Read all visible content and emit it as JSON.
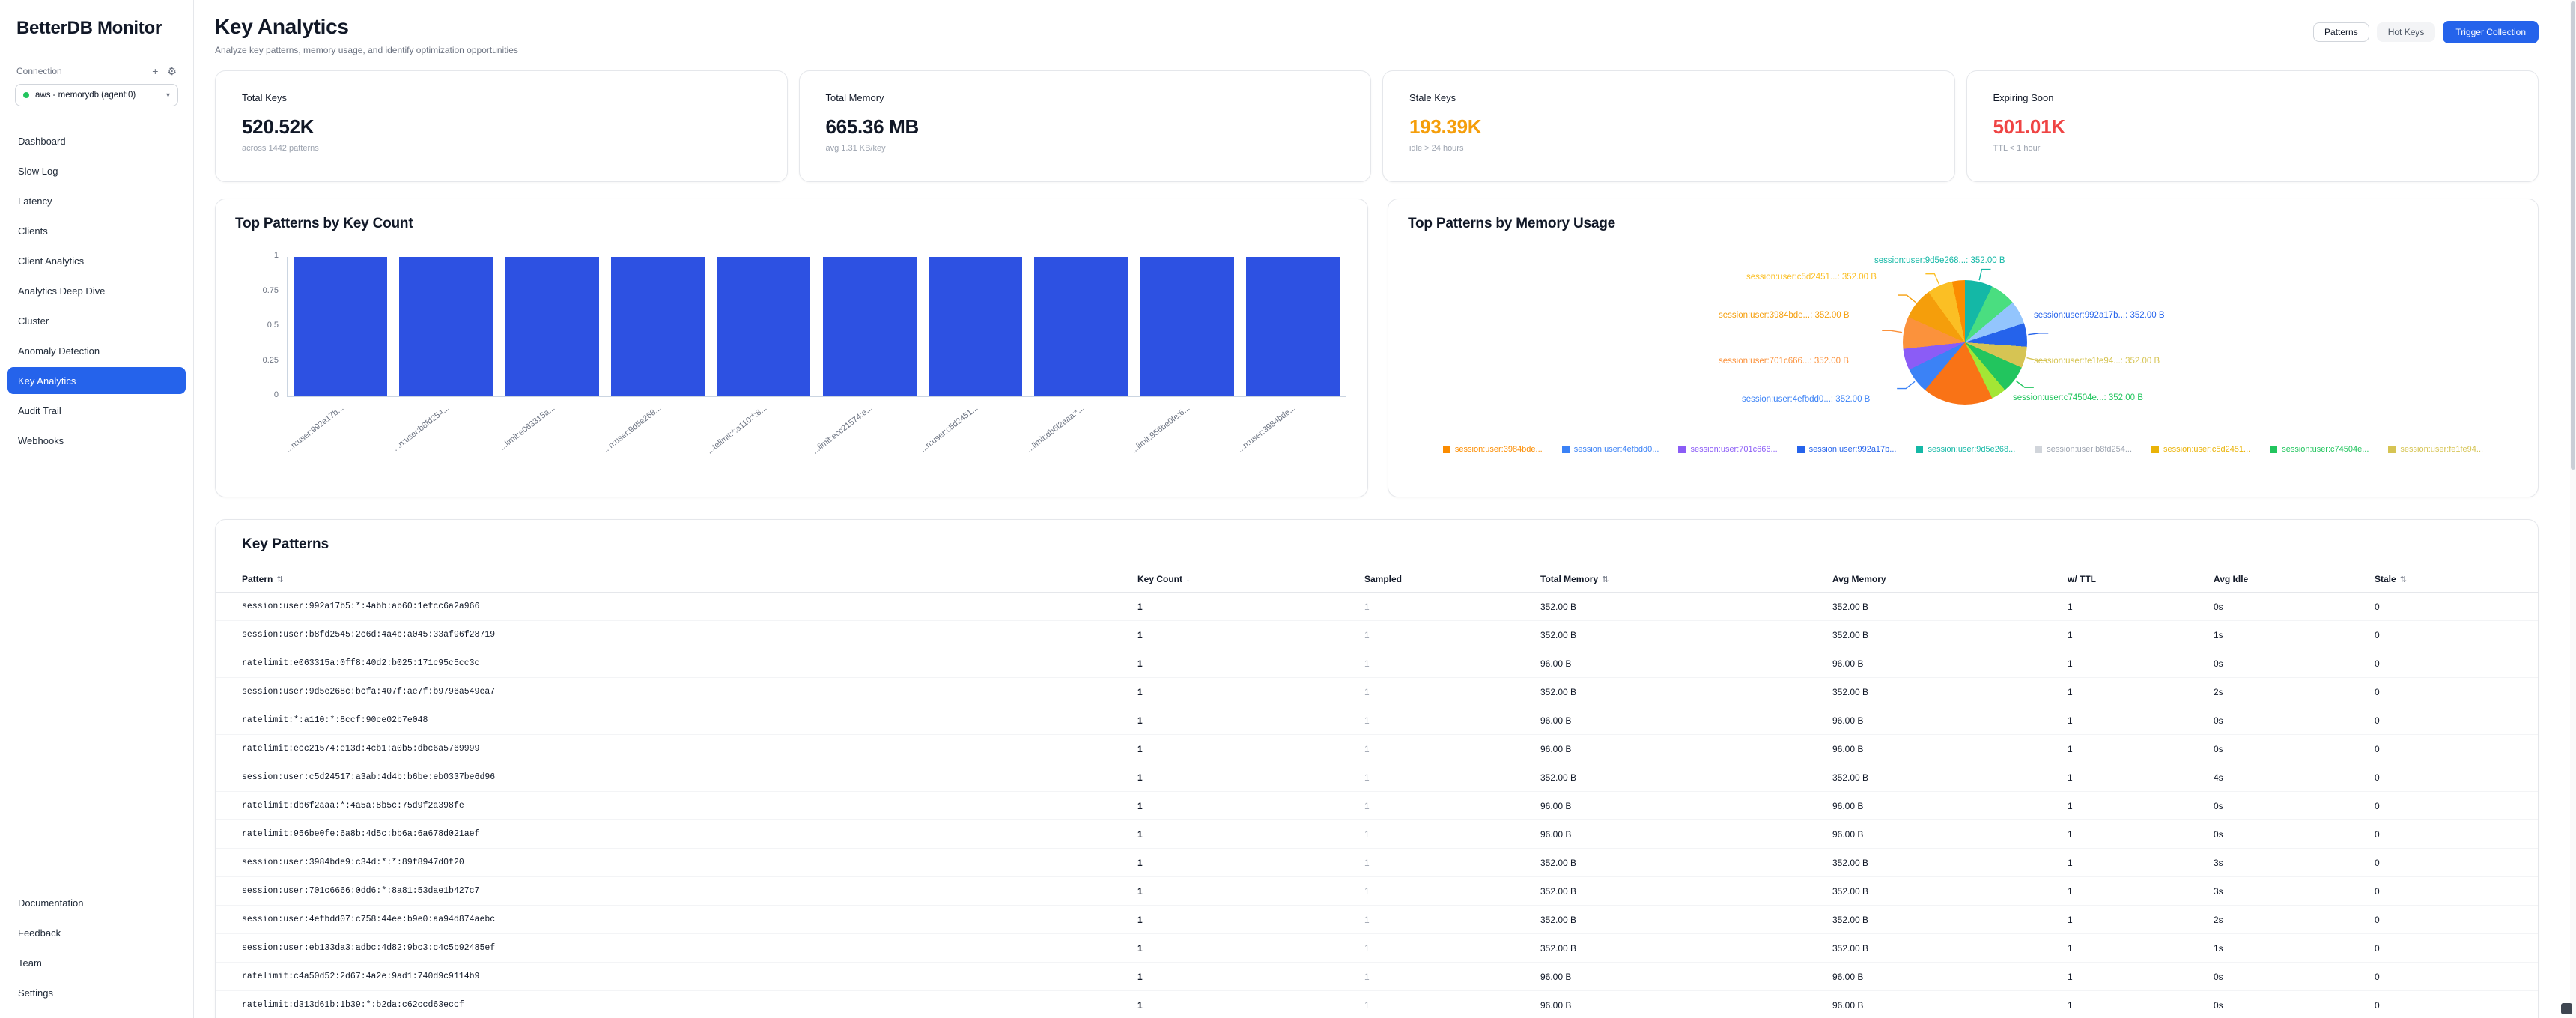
{
  "app": {
    "title": "BetterDB Monitor"
  },
  "sidebar": {
    "connection": {
      "label": "Connection",
      "selected": "aws - memorydb (agent:0)",
      "status_color": "#22c55e"
    },
    "items": [
      {
        "label": "Dashboard",
        "active": false
      },
      {
        "label": "Slow Log",
        "active": false
      },
      {
        "label": "Latency",
        "active": false
      },
      {
        "label": "Clients",
        "active": false
      },
      {
        "label": "Client Analytics",
        "active": false
      },
      {
        "label": "Analytics Deep Dive",
        "active": false
      },
      {
        "label": "Cluster",
        "active": false
      },
      {
        "label": "Anomaly Detection",
        "active": false
      },
      {
        "label": "Key Analytics",
        "active": true
      },
      {
        "label": "Audit Trail",
        "active": false
      },
      {
        "label": "Webhooks",
        "active": false
      }
    ],
    "footer_items": [
      {
        "label": "Documentation"
      },
      {
        "label": "Feedback"
      },
      {
        "label": "Team"
      },
      {
        "label": "Settings"
      }
    ]
  },
  "header": {
    "title": "Key Analytics",
    "subtitle": "Analyze key patterns, memory usage, and identify optimization opportunities",
    "actions": [
      {
        "label": "Patterns",
        "style": "outline"
      },
      {
        "label": "Hot Keys",
        "style": "ghost"
      },
      {
        "label": "Trigger Collection",
        "style": "primary"
      }
    ]
  },
  "stats": [
    {
      "label": "Total Keys",
      "value": "520.52K",
      "sub": "across 1442 patterns",
      "color": "#111827"
    },
    {
      "label": "Total Memory",
      "value": "665.36 MB",
      "sub": "avg 1.31 KB/key",
      "color": "#111827"
    },
    {
      "label": "Stale Keys",
      "value": "193.39K",
      "sub": "idle > 24 hours",
      "color": "#f59e0b"
    },
    {
      "label": "Expiring Soon",
      "value": "501.01K",
      "sub": "TTL < 1 hour",
      "color": "#ef4444"
    }
  ],
  "chart_data": [
    {
      "type": "bar",
      "title": "Top Patterns by Key Count",
      "categories": [
        "...n:user:992a17b...",
        "...n:user:b8fd254...",
        "...limit:e063315a...",
        "...n:user:9d5e268...",
        "...telimit:*:a110:*:8...",
        "...limit:ecc21574:e...",
        "...n:user:c5d2451...",
        "...limit:db6f2aaa:*...",
        "...limit:956be0fe:6...",
        "...n:user:3984bde..."
      ],
      "values": [
        1,
        1,
        1,
        1,
        1,
        1,
        1,
        1,
        1,
        1
      ],
      "xlabel": "",
      "ylabel": "",
      "ylim": [
        0,
        1
      ],
      "yticks": [
        1,
        0.75,
        0.5,
        0.25,
        0
      ],
      "bar_color": "#2d51e2",
      "grid": false,
      "legend_position": "none"
    },
    {
      "type": "pie",
      "title": "Top Patterns by Memory Usage",
      "callouts": [
        {
          "name": "session:user:9d5e268...",
          "value": "352.00 B",
          "color": "#14b8a6"
        },
        {
          "name": "session:user:c5d2451...",
          "value": "352.00 B",
          "color": "#fbbf24"
        },
        {
          "name": "session:user:3984bde...",
          "value": "352.00 B",
          "color": "#f59e0b"
        },
        {
          "name": "session:user:701c666...",
          "value": "352.00 B",
          "color": "#fb923c"
        },
        {
          "name": "session:user:4efbdd0...",
          "value": "352.00 B",
          "color": "#3b82f6"
        },
        {
          "name": "session:user:992a17b...",
          "value": "352.00 B",
          "color": "#2563eb"
        },
        {
          "name": "session:user:fe1fe94...",
          "value": "352.00 B",
          "color": "#d6c453"
        },
        {
          "name": "session:user:c74504e...",
          "value": "352.00 B",
          "color": "#22c55e"
        }
      ],
      "slices": [
        {
          "color": "#14b8a6",
          "deg": 26
        },
        {
          "color": "#4ade80",
          "deg": 24
        },
        {
          "color": "#93c5fd",
          "deg": 22
        },
        {
          "color": "#2563eb",
          "deg": 22
        },
        {
          "color": "#d6c453",
          "deg": 20
        },
        {
          "color": "#22c55e",
          "deg": 26
        },
        {
          "color": "#a3e635",
          "deg": 14
        },
        {
          "color": "#f97316",
          "deg": 66
        },
        {
          "color": "#3b82f6",
          "deg": 24
        },
        {
          "color": "#8b5cf6",
          "deg": 20
        },
        {
          "color": "#fb923c",
          "deg": 30
        },
        {
          "color": "#f59e0b",
          "deg": 30
        },
        {
          "color": "#fbbf24",
          "deg": 24
        },
        {
          "color": "#fb8c00",
          "deg": 12
        }
      ],
      "legend_position": "bottom",
      "legend": [
        {
          "name": "session:user:3984bde...",
          "color": "#fb8c00"
        },
        {
          "name": "session:user:4efbdd0...",
          "color": "#3b82f6"
        },
        {
          "name": "session:user:701c666...",
          "color": "#8b5cf6"
        },
        {
          "name": "session:user:992a17b...",
          "color": "#2563eb"
        },
        {
          "name": "session:user:9d5e268...",
          "color": "#14b8a6"
        },
        {
          "name": "session:user:b8fd254...",
          "color": "#d1d5db"
        },
        {
          "name": "session:user:c5d2451...",
          "color": "#eab308"
        },
        {
          "name": "session:user:c74504e...",
          "color": "#22c55e"
        },
        {
          "name": "session:user:fe1fe94...",
          "color": "#d6c453"
        }
      ]
    }
  ],
  "table": {
    "title": "Key Patterns",
    "columns": [
      {
        "label": "Pattern",
        "sort_icon": "⇅"
      },
      {
        "label": "Key Count",
        "sort_icon": "↓"
      },
      {
        "label": "Sampled",
        "sort_icon": ""
      },
      {
        "label": "Total Memory",
        "sort_icon": "⇅"
      },
      {
        "label": "Avg Memory",
        "sort_icon": ""
      },
      {
        "label": "w/ TTL",
        "sort_icon": ""
      },
      {
        "label": "Avg Idle",
        "sort_icon": ""
      },
      {
        "label": "Stale",
        "sort_icon": "⇅"
      }
    ],
    "rows": [
      [
        "session:user:992a17b5:*:4abb:ab60:1efcc6a2a966",
        "1",
        "1",
        "352.00 B",
        "352.00 B",
        "1",
        "0s",
        "0"
      ],
      [
        "session:user:b8fd2545:2c6d:4a4b:a045:33af96f28719",
        "1",
        "1",
        "352.00 B",
        "352.00 B",
        "1",
        "1s",
        "0"
      ],
      [
        "ratelimit:e063315a:0ff8:40d2:b025:171c95c5cc3c",
        "1",
        "1",
        "96.00 B",
        "96.00 B",
        "1",
        "0s",
        "0"
      ],
      [
        "session:user:9d5e268c:bcfa:407f:ae7f:b9796a549ea7",
        "1",
        "1",
        "352.00 B",
        "352.00 B",
        "1",
        "2s",
        "0"
      ],
      [
        "ratelimit:*:a110:*:8ccf:90ce02b7e048",
        "1",
        "1",
        "96.00 B",
        "96.00 B",
        "1",
        "0s",
        "0"
      ],
      [
        "ratelimit:ecc21574:e13d:4cb1:a0b5:dbc6a5769999",
        "1",
        "1",
        "96.00 B",
        "96.00 B",
        "1",
        "0s",
        "0"
      ],
      [
        "session:user:c5d24517:a3ab:4d4b:b6be:eb0337be6d96",
        "1",
        "1",
        "352.00 B",
        "352.00 B",
        "1",
        "4s",
        "0"
      ],
      [
        "ratelimit:db6f2aaa:*:4a5a:8b5c:75d9f2a398fe",
        "1",
        "1",
        "96.00 B",
        "96.00 B",
        "1",
        "0s",
        "0"
      ],
      [
        "ratelimit:956be0fe:6a8b:4d5c:bb6a:6a678d021aef",
        "1",
        "1",
        "96.00 B",
        "96.00 B",
        "1",
        "0s",
        "0"
      ],
      [
        "session:user:3984bde9:c34d:*:*:89f8947d0f20",
        "1",
        "1",
        "352.00 B",
        "352.00 B",
        "1",
        "3s",
        "0"
      ],
      [
        "session:user:701c6666:0dd6:*:8a81:53dae1b427c7",
        "1",
        "1",
        "352.00 B",
        "352.00 B",
        "1",
        "3s",
        "0"
      ],
      [
        "session:user:4efbdd07:c758:44ee:b9e0:aa94d874aebc",
        "1",
        "1",
        "352.00 B",
        "352.00 B",
        "1",
        "2s",
        "0"
      ],
      [
        "session:user:eb133da3:adbc:4d82:9bc3:c4c5b92485ef",
        "1",
        "1",
        "352.00 B",
        "352.00 B",
        "1",
        "1s",
        "0"
      ],
      [
        "ratelimit:c4a50d52:2d67:4a2e:9ad1:740d9c9114b9",
        "1",
        "1",
        "96.00 B",
        "96.00 B",
        "1",
        "0s",
        "0"
      ],
      [
        "ratelimit:d313d61b:1b39:*:b2da:c62ccd63eccf",
        "1",
        "1",
        "96.00 B",
        "96.00 B",
        "1",
        "0s",
        "0"
      ]
    ]
  }
}
